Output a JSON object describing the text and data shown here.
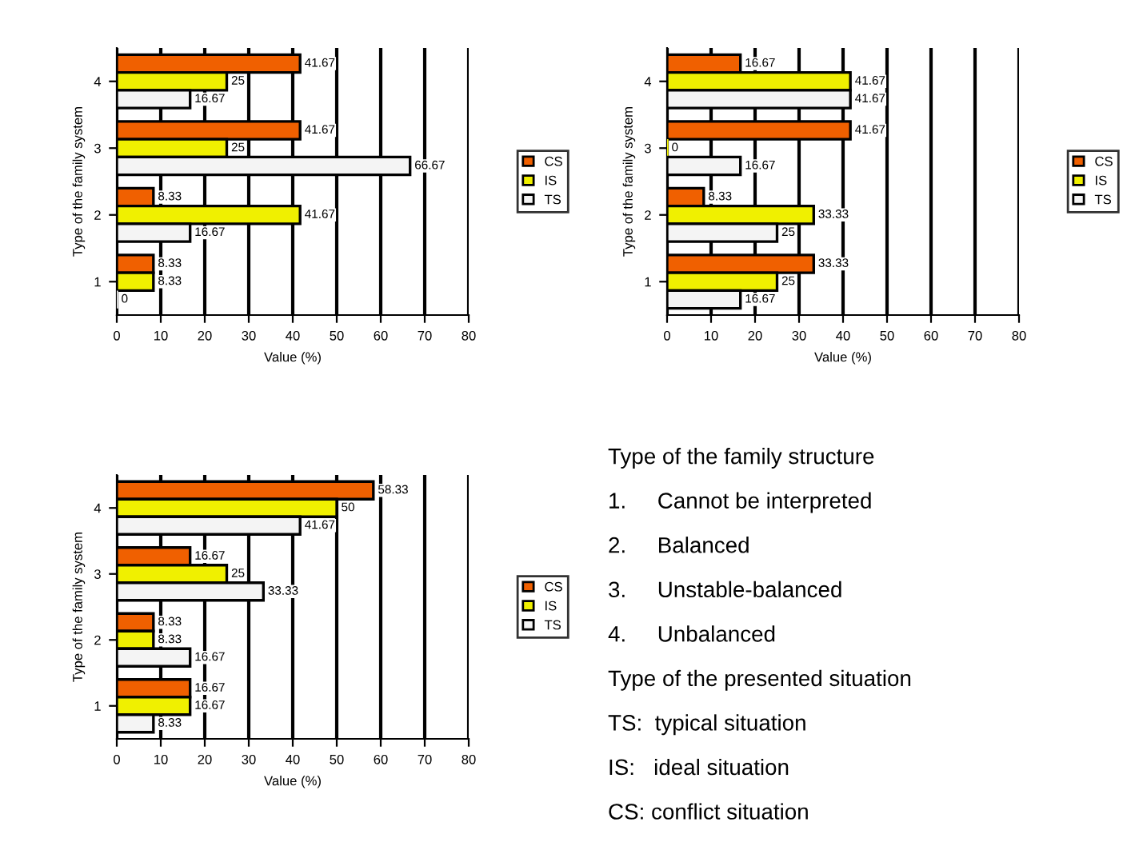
{
  "chart_data": [
    {
      "type": "bar",
      "orientation": "horizontal",
      "categories": [
        "4",
        "3",
        "2",
        "1"
      ],
      "xlabel": "Value (%)",
      "ylabel": "Type of the family system",
      "xlim": [
        0,
        80
      ],
      "xticks": [
        0,
        10,
        20,
        30,
        40,
        50,
        60,
        70,
        80
      ],
      "grid": "x",
      "legend": "right",
      "data_labels": true,
      "series": [
        {
          "name": "CS",
          "color": "#f06000",
          "values": [
            41.67,
            41.67,
            8.33,
            8.33
          ]
        },
        {
          "name": "IS",
          "color": "#f0f000",
          "values": [
            25,
            25,
            41.67,
            8.33
          ]
        },
        {
          "name": "TS",
          "color": "#f4f4f4",
          "values": [
            16.67,
            66.67,
            16.67,
            0
          ]
        }
      ]
    },
    {
      "type": "bar",
      "orientation": "horizontal",
      "categories": [
        "4",
        "3",
        "2",
        "1"
      ],
      "xlabel": "Value (%)",
      "ylabel": "Type of the family system",
      "xlim": [
        0,
        80
      ],
      "xticks": [
        0,
        10,
        20,
        30,
        40,
        50,
        60,
        70,
        80
      ],
      "grid": "x",
      "legend": "right",
      "data_labels": true,
      "series": [
        {
          "name": "CS",
          "color": "#f06000",
          "values": [
            16.67,
            41.67,
            8.33,
            33.33
          ]
        },
        {
          "name": "IS",
          "color": "#f0f000",
          "values": [
            41.67,
            0,
            33.33,
            25
          ]
        },
        {
          "name": "TS",
          "color": "#f4f4f4",
          "values": [
            41.67,
            16.67,
            25,
            16.67
          ]
        }
      ]
    },
    {
      "type": "bar",
      "orientation": "horizontal",
      "categories": [
        "4",
        "3",
        "2",
        "1"
      ],
      "xlabel": "Value (%)",
      "ylabel": "Type of the family system",
      "xlim": [
        0,
        80
      ],
      "xticks": [
        0,
        10,
        20,
        30,
        40,
        50,
        60,
        70,
        80
      ],
      "grid": "x",
      "legend": "right",
      "data_labels": true,
      "series": [
        {
          "name": "CS",
          "color": "#f06000",
          "values": [
            58.33,
            16.67,
            8.33,
            16.67
          ]
        },
        {
          "name": "IS",
          "color": "#f0f000",
          "values": [
            50,
            25,
            8.33,
            16.67
          ]
        },
        {
          "name": "TS",
          "color": "#f4f4f4",
          "values": [
            41.67,
            33.33,
            16.67,
            8.33
          ]
        }
      ]
    },
    {
      "type": "other",
      "annotations": [
        "Type of the family structure",
        "1.     Cannot be interpreted",
        "2.     Balanced",
        "3.     Unstable-balanced",
        "4.     Unbalanced",
        "Type of the presented situation",
        "TS:  typical situation",
        "IS:   ideal situation",
        "CS: conflict situation"
      ]
    }
  ]
}
